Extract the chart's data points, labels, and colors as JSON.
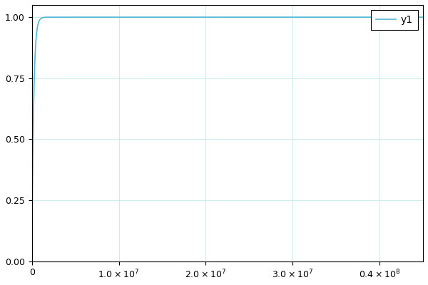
{
  "line_color": "#4DB8D4",
  "line_width": 1.2,
  "legend_label": "y1",
  "xlim": [
    0,
    45000000.0
  ],
  "ylim": [
    0.0,
    1.05
  ],
  "xticks": [
    0,
    10000000.0,
    20000000.0,
    30000000.0,
    40000000.0
  ],
  "yticks": [
    0.0,
    0.25,
    0.5,
    0.75,
    1.0
  ],
  "xlabel": "",
  "ylabel": "",
  "background_color": "#ffffff",
  "grid_color": "#c8e6f0",
  "cdf_lambda": 5e-06,
  "x_max": 45000000.0,
  "num_points": 5000,
  "legend_fontsize": 10,
  "tick_fontsize": 9,
  "figure_width": 6.0,
  "figure_height": 4.0,
  "dpi": 100
}
